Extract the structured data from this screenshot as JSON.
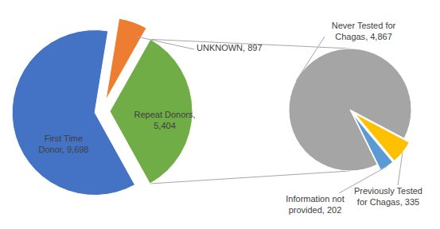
{
  "chart_data": [
    {
      "type": "pie",
      "categories": [
        "First Time Donor",
        "UNKNOWN",
        "Repeat Donors"
      ],
      "values": [
        9698,
        897,
        5404
      ],
      "value_labels": [
        "9,698",
        "897",
        "5,404"
      ],
      "colors": [
        "#4472c4",
        "#ed7d31",
        "#70ad47"
      ],
      "data_labels": true
    },
    {
      "type": "pie",
      "categories": [
        "Never Tested for Chagas",
        "Previously Tested for Chagas",
        "Information not provided"
      ],
      "values": [
        4867,
        335,
        202
      ],
      "value_labels": [
        "4,867",
        "335",
        "202"
      ],
      "colors": [
        "#a5a5a5",
        "#ffc000",
        "#5b9bd5"
      ],
      "data_labels": true
    }
  ]
}
